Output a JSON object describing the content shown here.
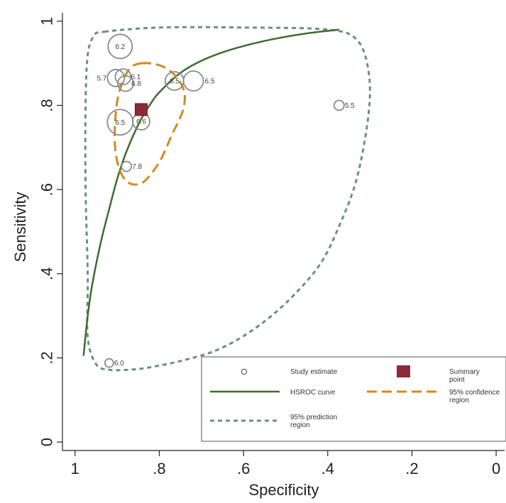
{
  "chart_data": {
    "type": "scatter",
    "xlabel": "Specificity",
    "ylabel": "Sensitivity",
    "xlim": [
      1.03,
      -0.02
    ],
    "ylim": [
      -0.02,
      1.02
    ],
    "x_reversed": true,
    "x_ticks": [
      1,
      0.8,
      0.6,
      0.4,
      0.2,
      0
    ],
    "x_tick_labels": [
      "1",
      ".8",
      ".6",
      ".4",
      ".2",
      "0"
    ],
    "y_ticks": [
      0,
      0.2,
      0.4,
      0.6,
      0.8,
      1
    ],
    "y_tick_labels": [
      "0",
      ".2",
      ".4",
      ".6",
      ".8",
      "1"
    ],
    "grid": false,
    "legend_position": "bottom-right",
    "legend": [
      {
        "key": "study",
        "label": "Study estimate"
      },
      {
        "key": "summary",
        "label": "Summary point"
      },
      {
        "key": "hsroc",
        "label": "HSROC curve"
      },
      {
        "key": "confidence",
        "label": "95% confidence region"
      },
      {
        "key": "prediction",
        "label": "95% prediction region"
      }
    ],
    "studies": [
      {
        "label": "6.2",
        "specificity": 0.893,
        "sensitivity": 0.94,
        "weight": 17
      },
      {
        "label": "5.7",
        "specificity": 0.903,
        "sensitivity": 0.865,
        "weight": 12
      },
      {
        "label": "6.1",
        "specificity": 0.886,
        "sensitivity": 0.868,
        "weight": 11
      },
      {
        "label": "6.8",
        "specificity": 0.88,
        "sensitivity": 0.852,
        "weight": 11
      },
      {
        "label": "6.5",
        "specificity": 0.764,
        "sensitivity": 0.858,
        "weight": 13
      },
      {
        "label": "6.5",
        "specificity": 0.719,
        "sensitivity": 0.858,
        "weight": 14
      },
      {
        "label": "6.5",
        "specificity": 0.893,
        "sensitivity": 0.76,
        "weight": 18
      },
      {
        "label": "6.6",
        "specificity": 0.843,
        "sensitivity": 0.762,
        "weight": 12
      },
      {
        "label": "7.8",
        "specificity": 0.878,
        "sensitivity": 0.655,
        "weight": 7
      },
      {
        "label": "5.5",
        "specificity": 0.373,
        "sensitivity": 0.8,
        "weight": 7
      },
      {
        "label": "6.0",
        "specificity": 0.919,
        "sensitivity": 0.188,
        "weight": 6
      }
    ],
    "summary_point": {
      "specificity": 0.843,
      "sensitivity": 0.79
    },
    "hsroc_curve": [
      [
        0.98,
        0.205
      ],
      [
        0.97,
        0.3
      ],
      [
        0.96,
        0.37
      ],
      [
        0.94,
        0.47
      ],
      [
        0.92,
        0.55
      ],
      [
        0.9,
        0.625
      ],
      [
        0.88,
        0.685
      ],
      [
        0.86,
        0.733
      ],
      [
        0.84,
        0.773
      ],
      [
        0.82,
        0.805
      ],
      [
        0.8,
        0.831
      ],
      [
        0.75,
        0.877
      ],
      [
        0.7,
        0.906
      ],
      [
        0.65,
        0.926
      ],
      [
        0.6,
        0.941
      ],
      [
        0.55,
        0.953
      ],
      [
        0.5,
        0.963
      ],
      [
        0.45,
        0.971
      ],
      [
        0.4,
        0.977
      ],
      [
        0.373,
        0.98
      ]
    ],
    "confidence_region": [
      [
        0.843,
        0.9
      ],
      [
        0.81,
        0.898
      ],
      [
        0.78,
        0.886
      ],
      [
        0.755,
        0.862
      ],
      [
        0.74,
        0.828
      ],
      [
        0.745,
        0.785
      ],
      [
        0.77,
        0.73
      ],
      [
        0.8,
        0.665
      ],
      [
        0.835,
        0.62
      ],
      [
        0.86,
        0.612
      ],
      [
        0.88,
        0.622
      ],
      [
        0.896,
        0.652
      ],
      [
        0.905,
        0.7
      ],
      [
        0.905,
        0.76
      ],
      [
        0.898,
        0.82
      ],
      [
        0.883,
        0.866
      ],
      [
        0.865,
        0.892
      ]
    ],
    "prediction_region": [
      [
        0.93,
        0.975
      ],
      [
        0.8,
        0.985
      ],
      [
        0.6,
        0.985
      ],
      [
        0.4,
        0.98
      ],
      [
        0.33,
        0.955
      ],
      [
        0.303,
        0.88
      ],
      [
        0.303,
        0.78
      ],
      [
        0.33,
        0.63
      ],
      [
        0.37,
        0.52
      ],
      [
        0.42,
        0.42
      ],
      [
        0.5,
        0.33
      ],
      [
        0.58,
        0.265
      ],
      [
        0.66,
        0.22
      ],
      [
        0.74,
        0.195
      ],
      [
        0.82,
        0.178
      ],
      [
        0.87,
        0.172
      ],
      [
        0.92,
        0.172
      ],
      [
        0.95,
        0.185
      ],
      [
        0.97,
        0.25
      ],
      [
        0.97,
        0.4
      ],
      [
        0.975,
        0.6
      ],
      [
        0.975,
        0.8
      ],
      [
        0.97,
        0.92
      ],
      [
        0.955,
        0.965
      ]
    ]
  }
}
